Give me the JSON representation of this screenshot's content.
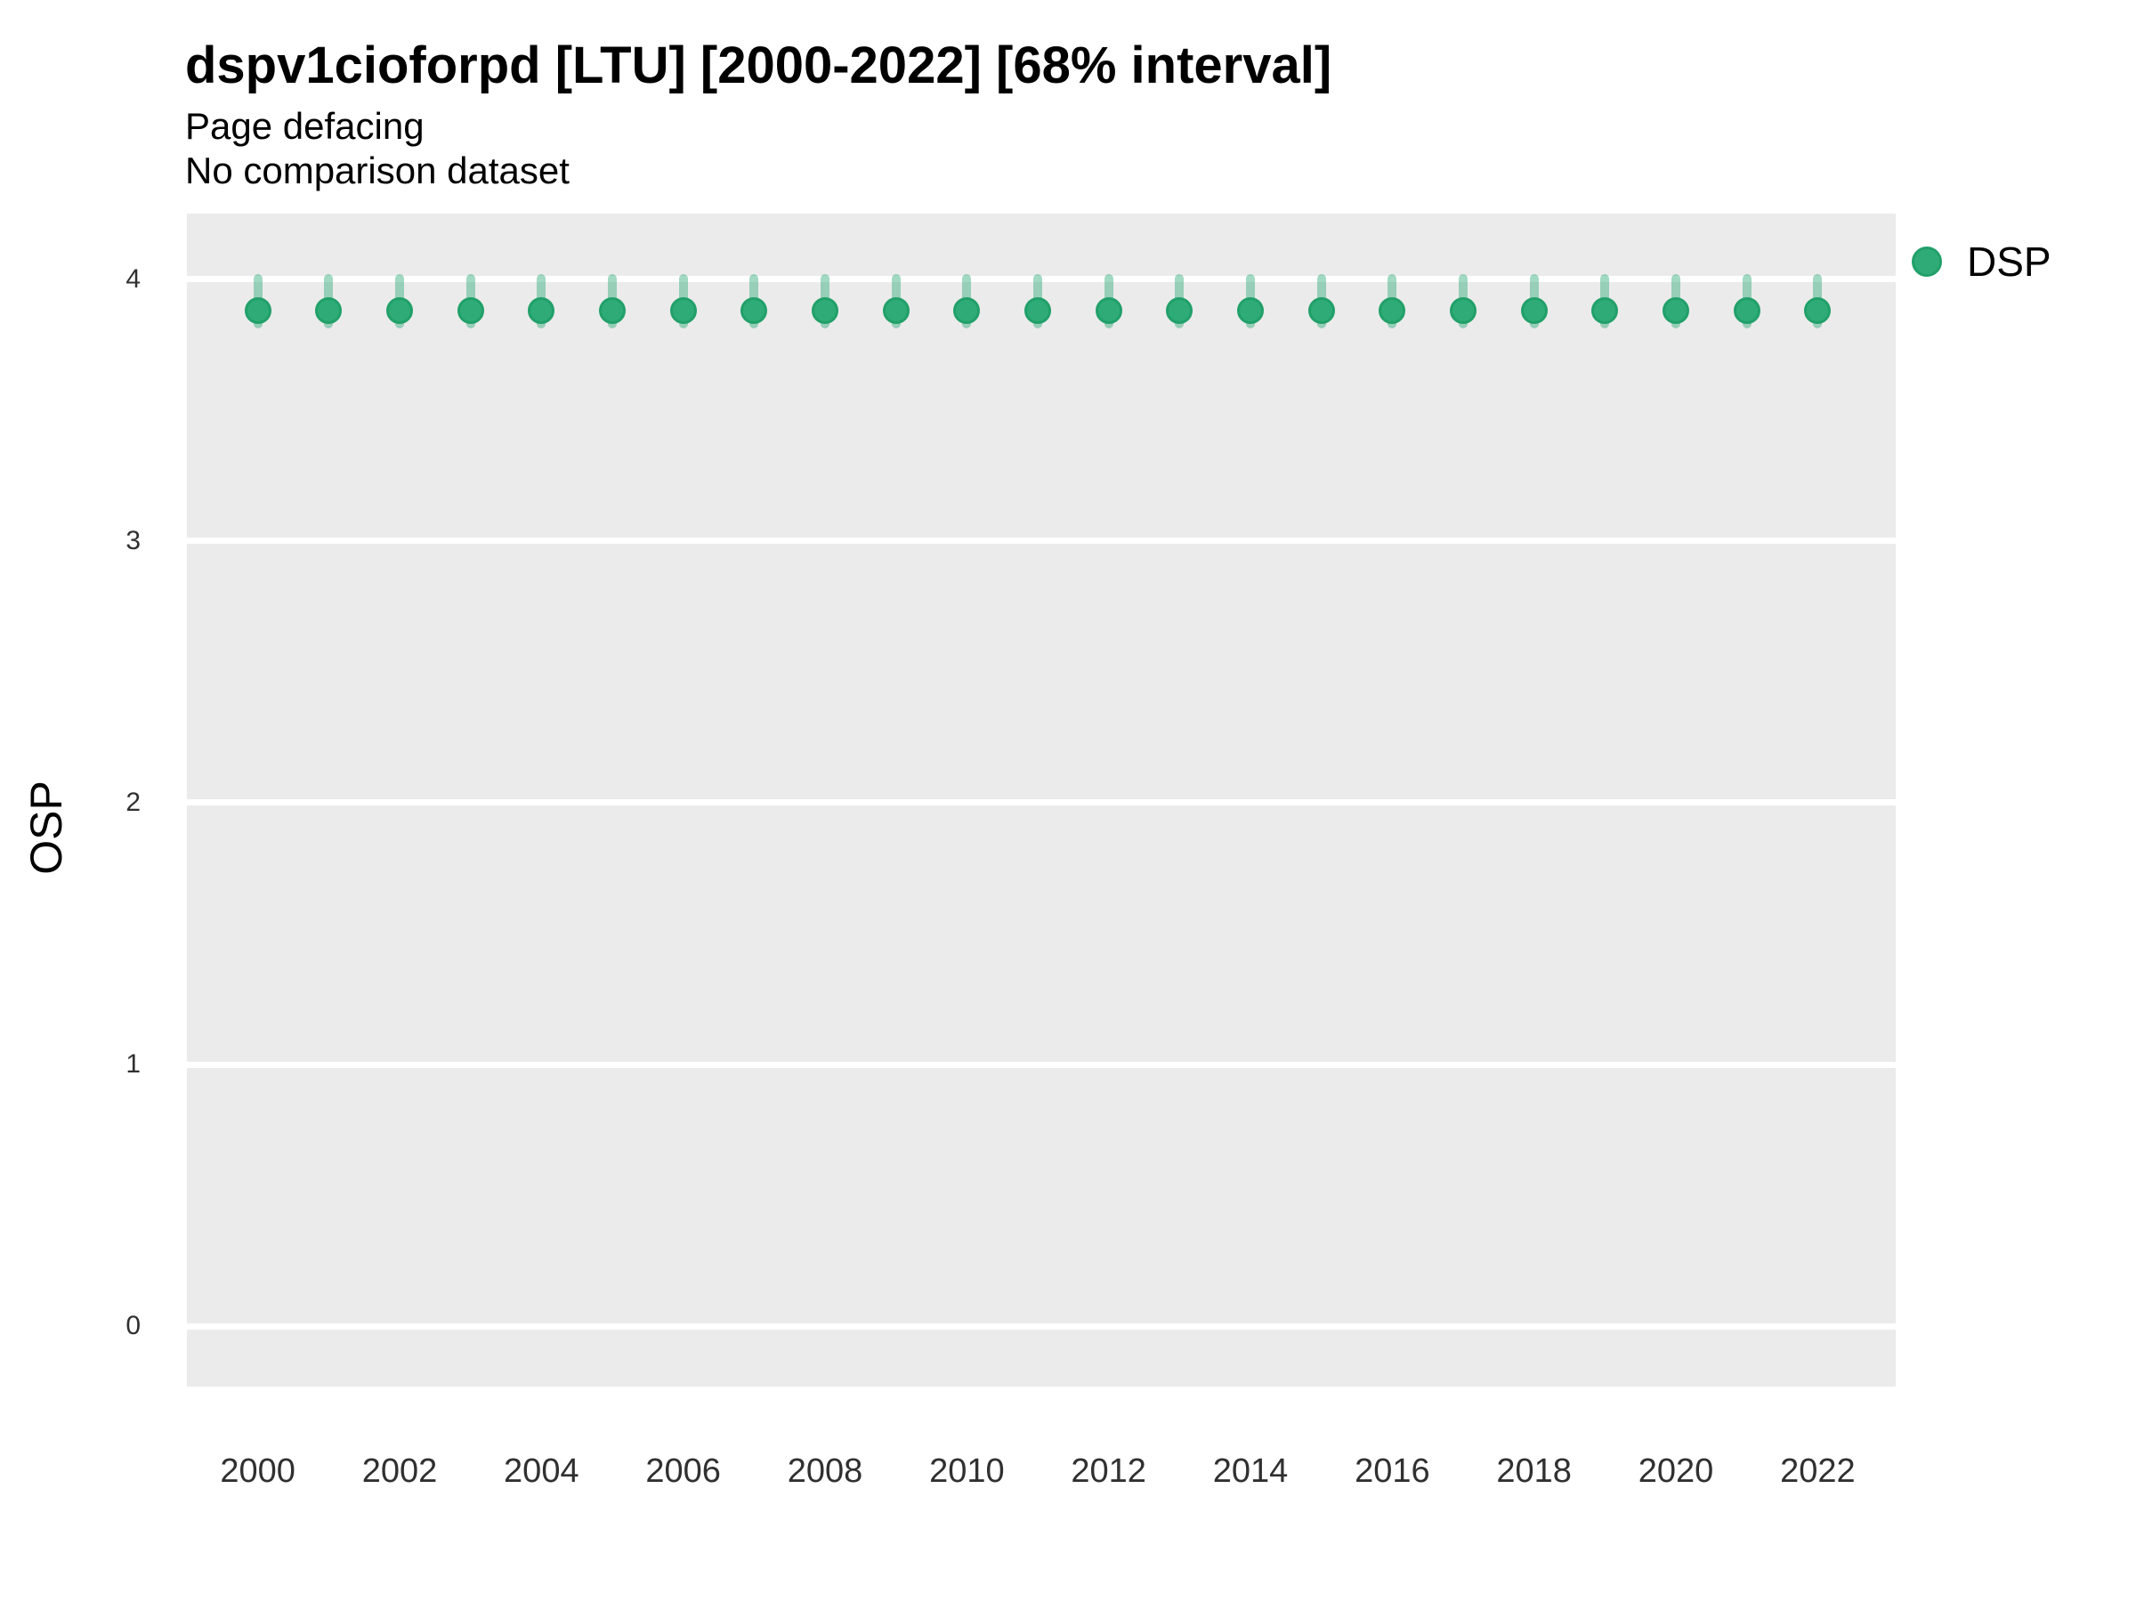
{
  "title": "dspv1cioforpd [LTU] [2000-2022] [68% interval]",
  "subtitle": "Page defacing",
  "comparison_note": "No comparison dataset",
  "legend": {
    "series_label": "DSP"
  },
  "colors": {
    "panel_background": "#EBEBEB",
    "gridline": "#FFFFFF",
    "point_fill": "#2FAB78",
    "point_border": "#21A069",
    "interval_fill": "rgba(47,171,120,0.45)",
    "text": "#000000",
    "tick_text": "#303030"
  },
  "chart_data": {
    "type": "scatter",
    "title": "dspv1cioforpd [LTU] [2000-2022] [68% interval]",
    "subtitle": "Page defacing",
    "note": "No comparison dataset",
    "interval": "68%",
    "xlabel": "",
    "ylabel": "OSP",
    "grid": true,
    "legend_position": "right",
    "xlim": [
      1999,
      2023.1
    ],
    "ylim": [
      -0.23,
      4.25
    ],
    "y_ticks": [
      0,
      1,
      2,
      3,
      4
    ],
    "x_tick_years": [
      2000,
      2002,
      2004,
      2006,
      2008,
      2010,
      2012,
      2014,
      2016,
      2018,
      2020,
      2022
    ],
    "x_tick_labels": [
      "2000",
      "2002",
      "2004",
      "2006",
      "2008",
      "2010",
      "2012",
      "2014",
      "2016",
      "2018",
      "2020",
      "2022"
    ],
    "series": [
      {
        "name": "DSP",
        "x": [
          2000,
          2001,
          2002,
          2003,
          2004,
          2005,
          2006,
          2007,
          2008,
          2009,
          2010,
          2011,
          2012,
          2013,
          2014,
          2015,
          2016,
          2017,
          2018,
          2019,
          2020,
          2021,
          2022
        ],
        "y": [
          3.88,
          3.88,
          3.88,
          3.88,
          3.88,
          3.88,
          3.88,
          3.88,
          3.88,
          3.88,
          3.88,
          3.88,
          3.88,
          3.88,
          3.88,
          3.88,
          3.88,
          3.88,
          3.88,
          3.88,
          3.88,
          3.88,
          3.88
        ],
        "y_low": [
          3.81,
          3.81,
          3.81,
          3.81,
          3.81,
          3.81,
          3.81,
          3.81,
          3.81,
          3.81,
          3.81,
          3.81,
          3.81,
          3.81,
          3.81,
          3.81,
          3.81,
          3.81,
          3.81,
          3.81,
          3.81,
          3.81,
          3.81
        ],
        "y_high": [
          4.02,
          4.02,
          4.02,
          4.02,
          4.02,
          4.02,
          4.02,
          4.02,
          4.02,
          4.02,
          4.02,
          4.02,
          4.02,
          4.02,
          4.02,
          4.02,
          4.02,
          4.02,
          4.02,
          4.02,
          4.02,
          4.02,
          4.02
        ]
      }
    ]
  }
}
